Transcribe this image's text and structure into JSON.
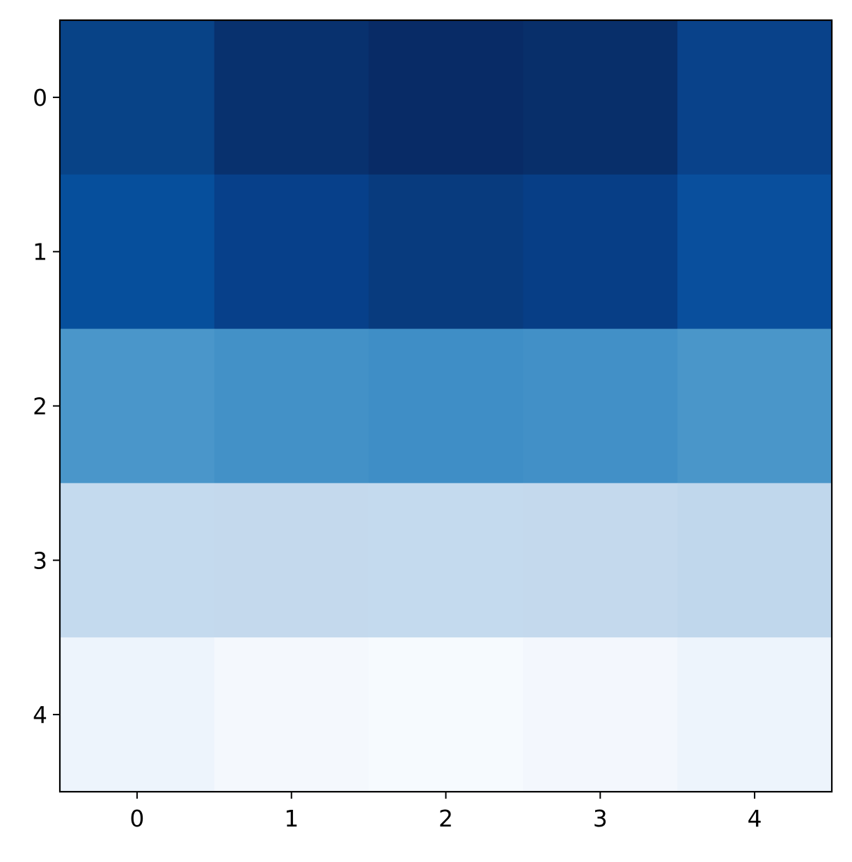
{
  "chart_data": {
    "type": "heatmap",
    "colormap": "Blues",
    "x_categories": [
      "0",
      "1",
      "2",
      "3",
      "4"
    ],
    "y_categories": [
      "0",
      "1",
      "2",
      "3",
      "4"
    ],
    "values": [
      [
        0.89,
        0.96,
        0.985,
        0.97,
        0.88
      ],
      [
        0.8,
        0.88,
        0.92,
        0.9,
        0.78
      ],
      [
        0.58,
        0.6,
        0.61,
        0.6,
        0.57
      ],
      [
        0.25,
        0.25,
        0.25,
        0.24,
        0.265
      ],
      [
        0.06,
        0.035,
        0.025,
        0.04,
        0.07
      ]
    ],
    "cell_colors": [
      [
        "#084387",
        "#08316e",
        "#082b66",
        "#082f6a",
        "#09428a"
      ],
      [
        "#064f9c",
        "#07408a",
        "#083b7e",
        "#073e86",
        "#094f9d"
      ],
      [
        "#4a96ca",
        "#4391c7",
        "#3f8ec6",
        "#4290c7",
        "#4a96c9"
      ],
      [
        "#c4daee",
        "#c4d9ed",
        "#c4daee",
        "#c4d9ed",
        "#c0d7ec"
      ],
      [
        "#edf4fc",
        "#f4f8fd",
        "#f6fafe",
        "#f3f7fd",
        "#edf4fc"
      ]
    ],
    "grid": false,
    "legend": false
  }
}
